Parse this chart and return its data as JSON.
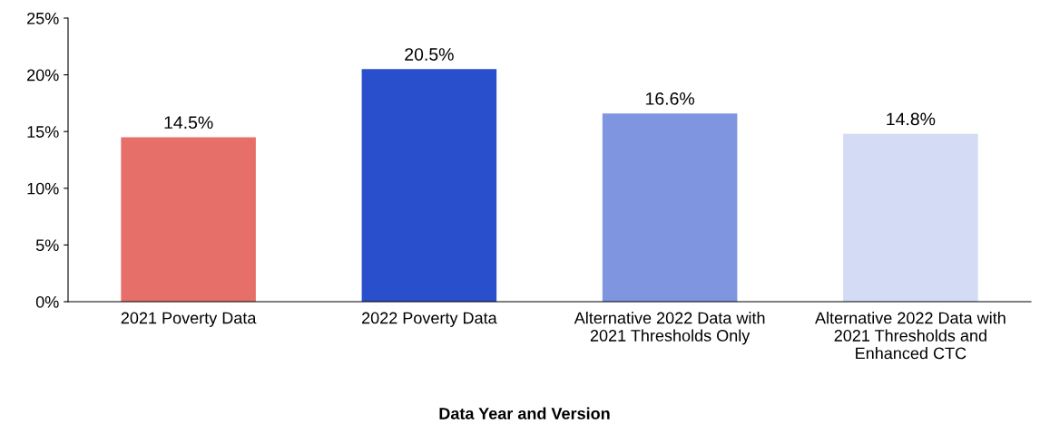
{
  "chart_data": {
    "type": "bar",
    "xlabel": "Data Year and Version",
    "categories": [
      "2021 Poverty Data",
      "2022 Poverty Data",
      "Alternative 2022 Data with\n2021 Thresholds Only",
      "Alternative 2022 Data with\n2021 Thresholds and\nEnhanced CTC"
    ],
    "values": [
      14.5,
      20.5,
      16.6,
      14.8
    ],
    "colors": [
      "#e76f6a",
      "#2a4fcc",
      "#7f95df",
      "#d4dbf5"
    ],
    "value_labels": [
      "14.5%",
      "20.5%",
      "16.6%",
      "14.8%"
    ],
    "ylim": [
      0,
      25
    ],
    "yticks": [
      {
        "value": 0,
        "label": "0%"
      },
      {
        "value": 5,
        "label": "5%"
      },
      {
        "value": 10,
        "label": "10%"
      },
      {
        "value": 15,
        "label": "15%"
      },
      {
        "value": 20,
        "label": "20%"
      },
      {
        "value": 25,
        "label": "25%"
      }
    ],
    "grid": false
  }
}
